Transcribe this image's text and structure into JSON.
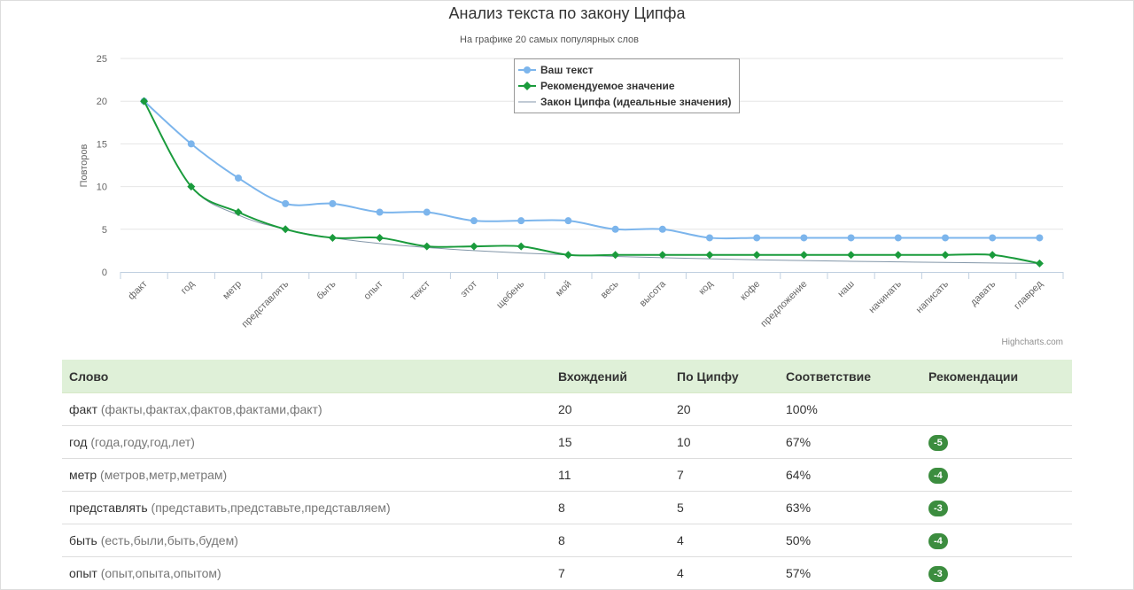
{
  "chart_data": {
    "type": "line",
    "title": "Анализ текста по закону Ципфа",
    "subtitle": "На графике 20 самых популярных слов",
    "ylabel": "Повторов",
    "ylim": [
      0,
      25
    ],
    "yticks": [
      0,
      5,
      10,
      15,
      20,
      25
    ],
    "grid": true,
    "legend_position": "top-center",
    "categories": [
      "факт",
      "год",
      "метр",
      "представлять",
      "быть",
      "опыт",
      "текст",
      "этот",
      "щебень",
      "мой",
      "весь",
      "высота",
      "код",
      "кофе",
      "предложение",
      "наш",
      "начинать",
      "написать",
      "давать",
      "главред"
    ],
    "series": [
      {
        "name": "Ваш текст",
        "color": "#7cb5ec",
        "marker": "circle",
        "values": [
          20,
          15,
          11,
          8,
          8,
          7,
          7,
          6,
          6,
          6,
          5,
          5,
          4,
          4,
          4,
          4,
          4,
          4,
          4,
          4
        ]
      },
      {
        "name": "Рекомендуемое значение",
        "color": "#1a9b3c",
        "marker": "diamond",
        "values": [
          20,
          10,
          7,
          5,
          4,
          4,
          3,
          3,
          3,
          2,
          2,
          2,
          2,
          2,
          2,
          2,
          2,
          2,
          2,
          1
        ]
      },
      {
        "name": "Закон Ципфа (идеальные значения)",
        "color": "#8296a8",
        "marker": "none",
        "values": [
          20,
          10,
          6.67,
          5,
          4,
          3.33,
          2.86,
          2.5,
          2.22,
          2,
          1.82,
          1.67,
          1.54,
          1.43,
          1.33,
          1.25,
          1.18,
          1.11,
          1.05,
          1
        ]
      }
    ],
    "credits": "Highcharts.com"
  },
  "table": {
    "headers": [
      "Слово",
      "Вхождений",
      "По Ципфу",
      "Соответствие",
      "Рекомендации"
    ],
    "rows": [
      {
        "word": "факт",
        "forms": "(факты,фактах,фактов,фактами,факт)",
        "count": "20",
        "zipf": "20",
        "match": "100%",
        "rec": ""
      },
      {
        "word": "год",
        "forms": "(года,году,год,лет)",
        "count": "15",
        "zipf": "10",
        "match": "67%",
        "rec": "-5"
      },
      {
        "word": "метр",
        "forms": "(метров,метр,метрам)",
        "count": "11",
        "zipf": "7",
        "match": "64%",
        "rec": "-4"
      },
      {
        "word": "представлять",
        "forms": "(представить,представьте,представляем)",
        "count": "8",
        "zipf": "5",
        "match": "63%",
        "rec": "-3"
      },
      {
        "word": "быть",
        "forms": "(есть,были,быть,будем)",
        "count": "8",
        "zipf": "4",
        "match": "50%",
        "rec": "-4"
      },
      {
        "word": "опыт",
        "forms": "(опыт,опыта,опытом)",
        "count": "7",
        "zipf": "4",
        "match": "57%",
        "rec": "-3"
      }
    ]
  }
}
